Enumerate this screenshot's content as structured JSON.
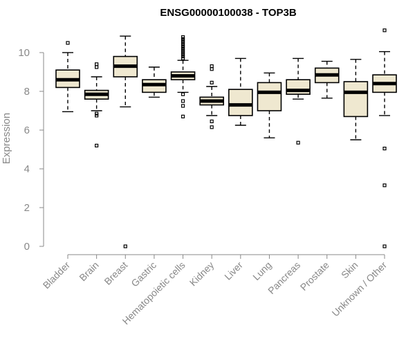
{
  "chart_data": {
    "type": "boxplot",
    "title": "ENSG00000100038 - TOP3B",
    "ylabel": "Expression",
    "ylim": [
      0,
      11.2
    ],
    "yticks": [
      0,
      2,
      4,
      6,
      8,
      10
    ],
    "grid": false,
    "box_color": "#efe8d0",
    "categories": [
      "Bladder",
      "Brain",
      "Breast",
      "Gastric",
      "Hematopoietic cells",
      "Kidney",
      "Liver",
      "Lung",
      "Pancreas",
      "Prostate",
      "Skin",
      "Unknown / Other"
    ],
    "boxes": [
      {
        "name": "Bladder",
        "whisker_low": 6.95,
        "q1": 8.2,
        "median": 8.6,
        "q3": 9.1,
        "whisker_high": 10.0,
        "outliers": [
          10.5
        ]
      },
      {
        "name": "Brain",
        "whisker_low": 7.0,
        "q1": 7.6,
        "median": 7.85,
        "q3": 8.05,
        "whisker_high": 8.75,
        "outliers": [
          9.4,
          9.25,
          6.85,
          6.75,
          5.2
        ]
      },
      {
        "name": "Breast",
        "whisker_low": 7.2,
        "q1": 8.75,
        "median": 9.3,
        "q3": 9.8,
        "whisker_high": 10.85,
        "outliers": [
          0.0
        ]
      },
      {
        "name": "Gastric",
        "whisker_low": 7.7,
        "q1": 7.95,
        "median": 8.35,
        "q3": 8.6,
        "whisker_high": 9.25,
        "outliers": []
      },
      {
        "name": "Hematopoietic cells",
        "whisker_low": 7.95,
        "q1": 8.6,
        "median": 8.8,
        "q3": 9.0,
        "whisker_high": 9.6,
        "outliers": [
          10.8,
          10.7,
          10.6,
          10.5,
          10.4,
          10.3,
          10.2,
          10.1,
          10.0,
          9.9,
          9.8,
          9.7,
          7.85,
          7.5,
          7.25,
          6.7
        ]
      },
      {
        "name": "Kidney",
        "whisker_low": 6.75,
        "q1": 7.3,
        "median": 7.5,
        "q3": 7.7,
        "whisker_high": 8.25,
        "outliers": [
          9.3,
          9.15,
          8.45,
          6.45,
          6.15
        ]
      },
      {
        "name": "Liver",
        "whisker_low": 6.25,
        "q1": 6.75,
        "median": 7.3,
        "q3": 8.1,
        "whisker_high": 9.7,
        "outliers": []
      },
      {
        "name": "Lung",
        "whisker_low": 5.6,
        "q1": 7.0,
        "median": 7.95,
        "q3": 8.45,
        "whisker_high": 8.95,
        "outliers": []
      },
      {
        "name": "Pancreas",
        "whisker_low": 7.6,
        "q1": 7.85,
        "median": 8.05,
        "q3": 8.6,
        "whisker_high": 9.7,
        "outliers": [
          5.35
        ]
      },
      {
        "name": "Prostate",
        "whisker_low": 7.65,
        "q1": 8.45,
        "median": 8.85,
        "q3": 9.2,
        "whisker_high": 9.55,
        "outliers": []
      },
      {
        "name": "Skin",
        "whisker_low": 5.5,
        "q1": 6.7,
        "median": 7.95,
        "q3": 8.5,
        "whisker_high": 9.65,
        "outliers": []
      },
      {
        "name": "Unknown / Other",
        "whisker_low": 6.75,
        "q1": 7.95,
        "median": 8.4,
        "q3": 8.85,
        "whisker_high": 10.05,
        "outliers": [
          11.15,
          5.05,
          3.15,
          0.0
        ]
      }
    ]
  }
}
